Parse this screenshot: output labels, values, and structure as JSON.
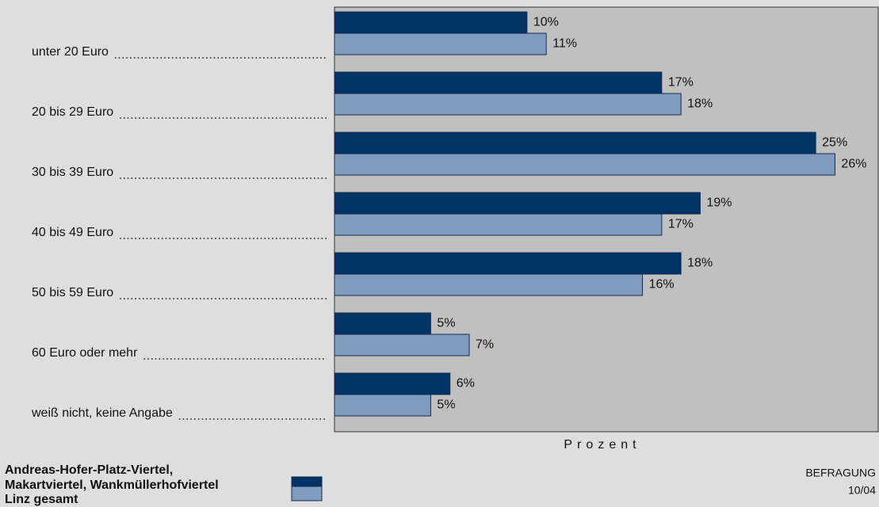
{
  "chart_data": {
    "type": "bar",
    "orientation": "horizontal",
    "categories": [
      "unter 20 Euro",
      "20 bis 29 Euro",
      "30 bis 39 Euro",
      "40 bis 49 Euro",
      "50 bis 59 Euro",
      "60 Euro oder mehr",
      "weiß nicht, keine Angabe"
    ],
    "series": [
      {
        "name": "Andreas-Hofer-Platz-Viertel,\nMakartviertel, Wankmüllerhofviertel",
        "color": "#003366",
        "values": [
          10,
          17,
          25,
          19,
          18,
          5,
          6
        ],
        "value_labels": [
          "10%",
          "17%",
          "25%",
          "19%",
          "18%",
          "5%",
          "6%"
        ]
      },
      {
        "name": "Linz gesamt",
        "color": "#7f9bbd",
        "values": [
          11,
          18,
          26,
          17,
          16,
          7,
          5
        ],
        "value_labels": [
          "11%",
          "18%",
          "26%",
          "17%",
          "16%",
          "7%",
          "5%"
        ]
      }
    ],
    "xlabel": "Prozent",
    "xlim": [
      0,
      28
    ],
    "legend": "bottom-left",
    "footer": [
      "BEFRAGUNG",
      "10/04"
    ]
  }
}
